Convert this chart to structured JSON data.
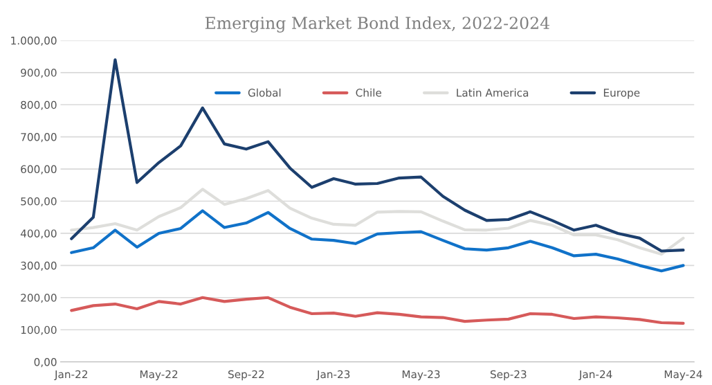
{
  "chart_data": {
    "type": "line",
    "title": "Emerging Market Bond Index, 2022-2024",
    "categories": [
      "Jan-22",
      null,
      null,
      null,
      "May-22",
      null,
      null,
      null,
      "Sep-22",
      null,
      null,
      null,
      "Jan-23",
      null,
      null,
      null,
      "May-23",
      null,
      null,
      null,
      "Sep-23",
      null,
      null,
      null,
      "Jan-24",
      null,
      null,
      null,
      "May-24"
    ],
    "series": [
      {
        "name": "Global",
        "color": "#1072c9",
        "values": [
          340,
          355,
          410,
          357,
          400,
          415,
          470,
          418,
          432,
          465,
          415,
          382,
          378,
          368,
          398,
          402,
          405,
          378,
          352,
          348,
          355,
          375,
          355,
          330,
          335,
          320,
          300,
          283,
          300
        ]
      },
      {
        "name": "Chile",
        "color": "#d65a5a",
        "values": [
          160,
          175,
          180,
          165,
          188,
          180,
          200,
          188,
          195,
          200,
          170,
          150,
          152,
          142,
          153,
          148,
          140,
          138,
          126,
          130,
          133,
          150,
          148,
          135,
          140,
          137,
          132,
          122,
          120
        ]
      },
      {
        "name": "Latin America",
        "color": "#dededb",
        "values": [
          410,
          418,
          430,
          410,
          452,
          480,
          537,
          490,
          508,
          533,
          478,
          447,
          428,
          425,
          466,
          468,
          467,
          438,
          411,
          410,
          416,
          440,
          425,
          395,
          395,
          380,
          355,
          335,
          385
        ]
      },
      {
        "name": "Europe",
        "color": "#1c3f6e",
        "values": [
          383,
          450,
          940,
          558,
          620,
          672,
          790,
          678,
          662,
          685,
          603,
          543,
          570,
          553,
          555,
          572,
          575,
          515,
          472,
          440,
          443,
          467,
          440,
          410,
          425,
          400,
          385,
          345,
          348
        ]
      }
    ],
    "ylim": [
      0,
      1000
    ],
    "yticks": [
      {
        "value": 0,
        "label": "0,00"
      },
      {
        "value": 100,
        "label": "100,00"
      },
      {
        "value": 200,
        "label": "200,00"
      },
      {
        "value": 300,
        "label": "300,00"
      },
      {
        "value": 400,
        "label": "400,00"
      },
      {
        "value": 500,
        "label": "500,00"
      },
      {
        "value": 600,
        "label": "600,00"
      },
      {
        "value": 700,
        "label": "700,00"
      },
      {
        "value": 800,
        "label": "800,00"
      },
      {
        "value": 900,
        "label": "900,00"
      },
      {
        "value": 1000,
        "label": "1.000,00"
      }
    ],
    "grid": "y",
    "legend": "top",
    "marker": "none",
    "line_style": "solid"
  }
}
